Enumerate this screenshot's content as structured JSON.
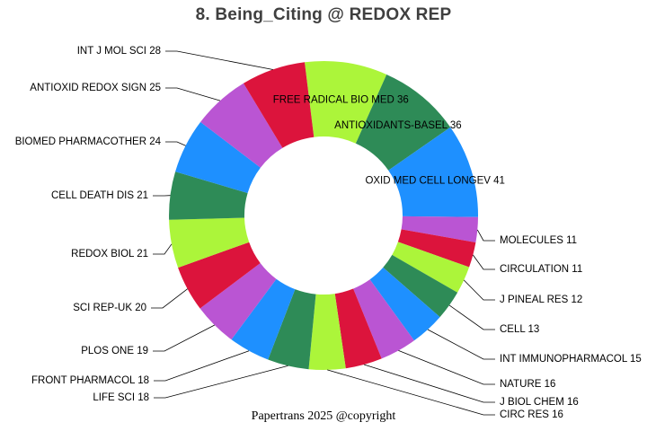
{
  "title": "8. Being_Citing @ REDOX REP",
  "footer": "Papertrans 2025 @copyright",
  "palette": [
    "#ACF53A",
    "#2E8B57",
    "#1E90FF",
    "#BA55D3",
    "#DC143C"
  ],
  "chart_data": {
    "type": "pie",
    "subtype": "donut",
    "title": "8. Being_Citing @ REDOX REP",
    "direction": "clockwise",
    "start_angle_deg": -7,
    "total": 417,
    "legend": "none",
    "inside_label_min_value": 36,
    "slices": [
      {
        "label": "FREE RADICAL BIO MED",
        "value": 36,
        "color": "#ACF53A",
        "label_placement": "inside"
      },
      {
        "label": "ANTIOXIDANTS-BASEL",
        "value": 36,
        "color": "#2E8B57",
        "label_placement": "inside"
      },
      {
        "label": "OXID MED CELL LONGEV",
        "value": 41,
        "color": "#1E90FF",
        "label_placement": "inside"
      },
      {
        "label": "MOLECULES",
        "value": 11,
        "color": "#BA55D3",
        "label_placement": "outside-right"
      },
      {
        "label": "CIRCULATION",
        "value": 11,
        "color": "#DC143C",
        "label_placement": "outside-right"
      },
      {
        "label": "J PINEAL RES",
        "value": 12,
        "color": "#ACF53A",
        "label_placement": "outside-right"
      },
      {
        "label": "CELL",
        "value": 13,
        "color": "#2E8B57",
        "label_placement": "outside-right"
      },
      {
        "label": "INT IMMUNOPHARMACOL",
        "value": 15,
        "color": "#1E90FF",
        "label_placement": "outside-right"
      },
      {
        "label": "NATURE",
        "value": 16,
        "color": "#BA55D3",
        "label_placement": "outside-right"
      },
      {
        "label": "J BIOL CHEM",
        "value": 16,
        "color": "#DC143C",
        "label_placement": "outside-right"
      },
      {
        "label": "CIRC RES",
        "value": 16,
        "color": "#ACF53A",
        "label_placement": "outside-right"
      },
      {
        "label": "LIFE SCI",
        "value": 18,
        "color": "#2E8B57",
        "label_placement": "outside-left"
      },
      {
        "label": "FRONT PHARMACOL",
        "value": 18,
        "color": "#1E90FF",
        "label_placement": "outside-left"
      },
      {
        "label": "PLOS ONE",
        "value": 19,
        "color": "#BA55D3",
        "label_placement": "outside-left"
      },
      {
        "label": "SCI REP-UK",
        "value": 20,
        "color": "#DC143C",
        "label_placement": "outside-left"
      },
      {
        "label": "REDOX BIOL",
        "value": 21,
        "color": "#ACF53A",
        "label_placement": "outside-left"
      },
      {
        "label": "CELL DEATH DIS",
        "value": 21,
        "color": "#2E8B57",
        "label_placement": "outside-left"
      },
      {
        "label": "BIOMED PHARMACOTHER",
        "value": 24,
        "color": "#1E90FF",
        "label_placement": "outside-left"
      },
      {
        "label": "ANTIOXID REDOX SIGN",
        "value": 25,
        "color": "#BA55D3",
        "label_placement": "outside-left"
      },
      {
        "label": "INT J MOL SCI",
        "value": 28,
        "color": "#DC143C",
        "label_placement": "outside-left"
      }
    ]
  }
}
